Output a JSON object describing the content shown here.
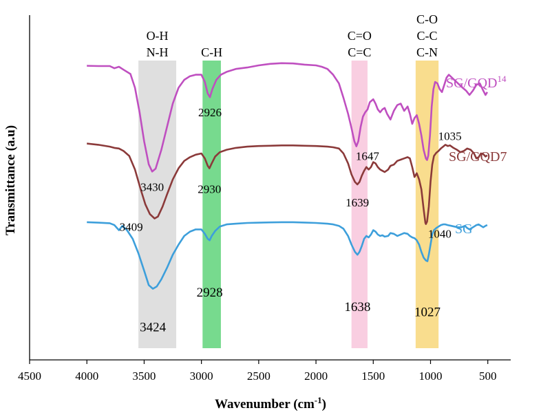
{
  "chart_data": {
    "type": "line",
    "title": "",
    "xlabel": "Wavenumber (cm",
    "xlabel_sup": "-1",
    "xlabel_close": ")",
    "ylabel": "Transmittance (a.u)",
    "xlim": [
      4500,
      300
    ],
    "x_ticks": [
      4500,
      4000,
      3500,
      3000,
      2500,
      2000,
      1500,
      1000,
      500
    ],
    "grid": false,
    "series": [
      {
        "name": "SG/GQD",
        "sup": "14",
        "color": "#BF4FC0",
        "points": [
          [
            4000,
            -0.02
          ],
          [
            3900,
            0.0
          ],
          [
            3800,
            0.0
          ],
          [
            3760,
            0.15
          ],
          [
            3720,
            0.05
          ],
          [
            3680,
            0.25
          ],
          [
            3620,
            0.55
          ],
          [
            3580,
            1.5
          ],
          [
            3540,
            3.2
          ],
          [
            3500,
            5.2
          ],
          [
            3460,
            6.8
          ],
          [
            3430,
            7.3
          ],
          [
            3400,
            7.1
          ],
          [
            3350,
            5.8
          ],
          [
            3300,
            4.2
          ],
          [
            3250,
            2.6
          ],
          [
            3200,
            1.5
          ],
          [
            3150,
            0.95
          ],
          [
            3100,
            0.7
          ],
          [
            3050,
            0.6
          ],
          [
            3000,
            0.6
          ],
          [
            2970,
            1.1
          ],
          [
            2945,
            1.9
          ],
          [
            2926,
            2.15
          ],
          [
            2905,
            1.6
          ],
          [
            2870,
            0.95
          ],
          [
            2830,
            0.6
          ],
          [
            2780,
            0.4
          ],
          [
            2700,
            0.2
          ],
          [
            2600,
            0.1
          ],
          [
            2500,
            -0.05
          ],
          [
            2400,
            -0.15
          ],
          [
            2300,
            -0.2
          ],
          [
            2200,
            -0.18
          ],
          [
            2100,
            -0.1
          ],
          [
            2000,
            -0.05
          ],
          [
            1950,
            0.05
          ],
          [
            1900,
            0.2
          ],
          [
            1850,
            0.6
          ],
          [
            1800,
            1.2
          ],
          [
            1760,
            2.2
          ],
          [
            1720,
            3.3
          ],
          [
            1690,
            4.3
          ],
          [
            1665,
            5.2
          ],
          [
            1647,
            5.55
          ],
          [
            1630,
            5.2
          ],
          [
            1610,
            4.2
          ],
          [
            1590,
            3.5
          ],
          [
            1570,
            3.2
          ],
          [
            1550,
            3.0
          ],
          [
            1530,
            2.5
          ],
          [
            1500,
            2.3
          ],
          [
            1480,
            2.6
          ],
          [
            1460,
            3.0
          ],
          [
            1440,
            3.2
          ],
          [
            1420,
            3.0
          ],
          [
            1400,
            2.9
          ],
          [
            1380,
            3.3
          ],
          [
            1350,
            3.7
          ],
          [
            1320,
            3.1
          ],
          [
            1290,
            2.7
          ],
          [
            1260,
            2.6
          ],
          [
            1230,
            3.1
          ],
          [
            1200,
            2.8
          ],
          [
            1180,
            3.3
          ],
          [
            1160,
            4.0
          ],
          [
            1140,
            3.6
          ],
          [
            1120,
            3.4
          ],
          [
            1100,
            4.0
          ],
          [
            1080,
            4.8
          ],
          [
            1060,
            5.8
          ],
          [
            1040,
            6.4
          ],
          [
            1030,
            6.5
          ],
          [
            1020,
            6.2
          ],
          [
            1005,
            4.8
          ],
          [
            990,
            2.8
          ],
          [
            975,
            1.6
          ],
          [
            960,
            1.1
          ],
          [
            940,
            1.2
          ],
          [
            920,
            1.6
          ],
          [
            900,
            1.8
          ],
          [
            880,
            1.3
          ],
          [
            860,
            0.8
          ],
          [
            840,
            0.6
          ],
          [
            800,
            0.9
          ],
          [
            760,
            1.2
          ],
          [
            720,
            1.5
          ],
          [
            690,
            1.7
          ],
          [
            660,
            2.0
          ],
          [
            630,
            1.7
          ],
          [
            600,
            1.3
          ],
          [
            570,
            1.2
          ],
          [
            540,
            1.7
          ],
          [
            520,
            2.0
          ],
          [
            505,
            1.8
          ]
        ]
      },
      {
        "name": "SG/GQD7",
        "color": "#8B3A3A",
        "points": [
          [
            4000,
            -0.3
          ],
          [
            3900,
            -0.2
          ],
          [
            3800,
            -0.05
          ],
          [
            3760,
            0.05
          ],
          [
            3720,
            0.1
          ],
          [
            3680,
            0.3
          ],
          [
            3630,
            0.7
          ],
          [
            3580,
            1.8
          ],
          [
            3530,
            3.4
          ],
          [
            3490,
            4.6
          ],
          [
            3450,
            5.4
          ],
          [
            3409,
            5.75
          ],
          [
            3380,
            5.6
          ],
          [
            3340,
            4.8
          ],
          [
            3300,
            3.8
          ],
          [
            3250,
            2.6
          ],
          [
            3200,
            1.7
          ],
          [
            3150,
            1.1
          ],
          [
            3100,
            0.8
          ],
          [
            3050,
            0.6
          ],
          [
            3000,
            0.5
          ],
          [
            2970,
            0.9
          ],
          [
            2945,
            1.5
          ],
          [
            2930,
            1.7
          ],
          [
            2910,
            1.3
          ],
          [
            2880,
            0.75
          ],
          [
            2840,
            0.4
          ],
          [
            2780,
            0.2
          ],
          [
            2700,
            0.05
          ],
          [
            2600,
            -0.05
          ],
          [
            2500,
            -0.1
          ],
          [
            2400,
            -0.12
          ],
          [
            2300,
            -0.15
          ],
          [
            2200,
            -0.15
          ],
          [
            2100,
            -0.12
          ],
          [
            2000,
            -0.1
          ],
          [
            1900,
            -0.05
          ],
          [
            1850,
            0.0
          ],
          [
            1800,
            0.1
          ],
          [
            1760,
            0.5
          ],
          [
            1720,
            1.3
          ],
          [
            1690,
            2.2
          ],
          [
            1660,
            2.8
          ],
          [
            1639,
            3.0
          ],
          [
            1620,
            2.8
          ],
          [
            1600,
            2.3
          ],
          [
            1580,
            1.9
          ],
          [
            1560,
            1.6
          ],
          [
            1540,
            1.8
          ],
          [
            1520,
            1.6
          ],
          [
            1500,
            1.2
          ],
          [
            1480,
            1.3
          ],
          [
            1460,
            1.6
          ],
          [
            1440,
            1.8
          ],
          [
            1420,
            1.9
          ],
          [
            1400,
            2.0
          ],
          [
            1370,
            1.8
          ],
          [
            1350,
            1.5
          ],
          [
            1320,
            1.4
          ],
          [
            1290,
            1.1
          ],
          [
            1260,
            1.0
          ],
          [
            1230,
            0.9
          ],
          [
            1200,
            0.8
          ],
          [
            1180,
            0.9
          ],
          [
            1160,
            1.6
          ],
          [
            1140,
            2.4
          ],
          [
            1120,
            2.1
          ],
          [
            1100,
            2.6
          ],
          [
            1080,
            3.4
          ],
          [
            1060,
            5.0
          ],
          [
            1045,
            6.1
          ],
          [
            1040,
            6.2
          ],
          [
            1030,
            6.0
          ],
          [
            1015,
            4.8
          ],
          [
            1000,
            2.8
          ],
          [
            985,
            1.4
          ],
          [
            970,
            0.7
          ],
          [
            950,
            0.45
          ],
          [
            930,
            0.3
          ],
          [
            910,
            0.1
          ],
          [
            890,
            -0.05
          ],
          [
            870,
            -0.2
          ],
          [
            850,
            -0.1
          ],
          [
            830,
            -0.15
          ],
          [
            800,
            0.05
          ],
          [
            770,
            0.2
          ],
          [
            740,
            0.4
          ],
          [
            710,
            0.3
          ],
          [
            680,
            0.1
          ],
          [
            650,
            0.2
          ],
          [
            620,
            0.5
          ],
          [
            600,
            0.9
          ],
          [
            580,
            0.8
          ],
          [
            560,
            0.5
          ],
          [
            540,
            0.55
          ],
          [
            520,
            0.75
          ],
          [
            505,
            0.65
          ]
        ]
      },
      {
        "name": "SG",
        "color": "#3D9FDB",
        "points": [
          [
            4000,
            -0.05
          ],
          [
            3900,
            -0.02
          ],
          [
            3800,
            0.02
          ],
          [
            3760,
            0.15
          ],
          [
            3720,
            0.5
          ],
          [
            3690,
            0.2
          ],
          [
            3650,
            0.5
          ],
          [
            3600,
            1.1
          ],
          [
            3550,
            2.1
          ],
          [
            3500,
            3.3
          ],
          [
            3460,
            4.3
          ],
          [
            3424,
            4.55
          ],
          [
            3390,
            4.4
          ],
          [
            3350,
            3.9
          ],
          [
            3300,
            3.1
          ],
          [
            3250,
            2.2
          ],
          [
            3200,
            1.5
          ],
          [
            3150,
            0.9
          ],
          [
            3100,
            0.6
          ],
          [
            3050,
            0.45
          ],
          [
            3000,
            0.45
          ],
          [
            2970,
            0.75
          ],
          [
            2945,
            1.1
          ],
          [
            2928,
            1.2
          ],
          [
            2910,
            0.9
          ],
          [
            2880,
            0.55
          ],
          [
            2840,
            0.25
          ],
          [
            2780,
            0.1
          ],
          [
            2700,
            0.05
          ],
          [
            2600,
            0.0
          ],
          [
            2500,
            -0.02
          ],
          [
            2400,
            -0.04
          ],
          [
            2300,
            -0.05
          ],
          [
            2200,
            -0.05
          ],
          [
            2100,
            -0.03
          ],
          [
            2000,
            0.0
          ],
          [
            1900,
            0.05
          ],
          [
            1850,
            0.1
          ],
          [
            1800,
            0.2
          ],
          [
            1760,
            0.4
          ],
          [
            1720,
            0.9
          ],
          [
            1690,
            1.5
          ],
          [
            1660,
            2.0
          ],
          [
            1638,
            2.2
          ],
          [
            1620,
            2.0
          ],
          [
            1600,
            1.6
          ],
          [
            1580,
            1.1
          ],
          [
            1560,
            0.9
          ],
          [
            1540,
            1.0
          ],
          [
            1520,
            0.8
          ],
          [
            1500,
            0.5
          ],
          [
            1480,
            0.6
          ],
          [
            1460,
            0.8
          ],
          [
            1440,
            0.9
          ],
          [
            1420,
            0.85
          ],
          [
            1400,
            0.95
          ],
          [
            1370,
            0.9
          ],
          [
            1350,
            0.7
          ],
          [
            1320,
            0.75
          ],
          [
            1290,
            0.9
          ],
          [
            1260,
            0.8
          ],
          [
            1230,
            0.7
          ],
          [
            1200,
            0.75
          ],
          [
            1180,
            0.9
          ],
          [
            1160,
            1.0
          ],
          [
            1140,
            1.05
          ],
          [
            1120,
            1.2
          ],
          [
            1100,
            1.5
          ],
          [
            1080,
            2.0
          ],
          [
            1060,
            2.4
          ],
          [
            1040,
            2.6
          ],
          [
            1027,
            2.65
          ],
          [
            1015,
            2.2
          ],
          [
            1000,
            1.5
          ],
          [
            985,
            0.8
          ],
          [
            970,
            0.5
          ],
          [
            950,
            0.35
          ],
          [
            930,
            0.25
          ],
          [
            910,
            0.15
          ],
          [
            890,
            0.1
          ],
          [
            870,
            0.1
          ],
          [
            850,
            0.15
          ],
          [
            820,
            0.2
          ],
          [
            790,
            0.25
          ],
          [
            760,
            0.3
          ],
          [
            730,
            0.3
          ],
          [
            700,
            0.2
          ],
          [
            680,
            0.35
          ],
          [
            660,
            0.45
          ],
          [
            640,
            0.35
          ],
          [
            620,
            0.25
          ],
          [
            600,
            0.15
          ],
          [
            580,
            0.1
          ],
          [
            560,
            0.2
          ],
          [
            540,
            0.3
          ],
          [
            520,
            0.2
          ],
          [
            505,
            0.15
          ]
        ]
      }
    ],
    "bands": [
      {
        "from": 3550,
        "to": 3220,
        "color": "#D9D9D9",
        "labels": [
          "O-H",
          "N-H"
        ]
      },
      {
        "from": 2990,
        "to": 2830,
        "color": "#5FD37A",
        "labels": [
          "C-H"
        ]
      },
      {
        "from": 1690,
        "to": 1550,
        "color": "#F8C6DC",
        "labels": [
          "C=O",
          "C=C"
        ]
      },
      {
        "from": 1130,
        "to": 930,
        "color": "#F8D77A",
        "labels": [
          "C-O",
          "C-C",
          "C-N"
        ]
      }
    ],
    "annotations": [
      {
        "series": "SG/GQD",
        "x": 3430,
        "text": "3430"
      },
      {
        "series": "SG/GQD",
        "x": 2926,
        "text": "2926"
      },
      {
        "series": "SG/GQD",
        "x": 1647,
        "text": "1647"
      },
      {
        "series": "SG/GQD",
        "x": 1035,
        "text": "1035"
      },
      {
        "series": "SG/GQD7",
        "x": 3409,
        "text": "3409"
      },
      {
        "series": "SG/GQD7",
        "x": 2930,
        "text": "2930"
      },
      {
        "series": "SG/GQD7",
        "x": 1639,
        "text": "1639"
      },
      {
        "series": "SG/GQD7",
        "x": 1040,
        "text": "1040"
      },
      {
        "series": "SG",
        "x": 3424,
        "text": "3424"
      },
      {
        "series": "SG",
        "x": 2928,
        "text": "2928"
      },
      {
        "series": "SG",
        "x": 1638,
        "text": "1638"
      },
      {
        "series": "SG",
        "x": 1027,
        "text": "1027"
      }
    ]
  }
}
